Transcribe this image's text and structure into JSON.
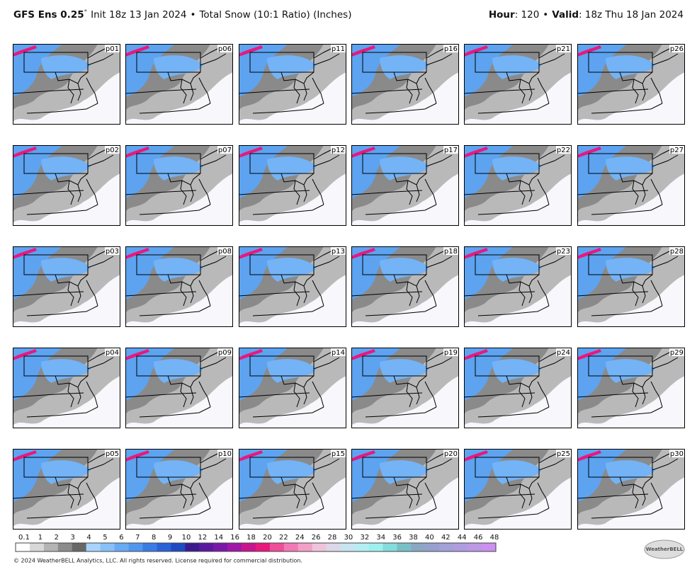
{
  "header": {
    "model": "GFS Ens 0.25",
    "degree": "°",
    "init": "Init 18z 13 Jan 2024",
    "separator": "•",
    "product": "Total Snow (10:1 Ratio) (Inches)",
    "hour_label": "Hour",
    "hour": ": 120",
    "valid_label": "Valid",
    "valid": ": 18z Thu 18 Jan 2024"
  },
  "panels": [
    "p01",
    "p06",
    "p11",
    "p16",
    "p21",
    "p26",
    "p02",
    "p07",
    "p12",
    "p17",
    "p22",
    "p27",
    "p03",
    "p08",
    "p13",
    "p18",
    "p23",
    "p28",
    "p04",
    "p09",
    "p14",
    "p19",
    "p24",
    "p29",
    "p05",
    "p10",
    "p15",
    "p20",
    "p25",
    "p30"
  ],
  "colorbar": {
    "ticks": [
      0.1,
      1,
      2,
      3,
      4,
      5,
      6,
      7,
      8,
      9,
      10,
      12,
      14,
      16,
      18,
      20,
      22,
      24,
      26,
      28,
      30,
      32,
      34,
      36,
      38,
      40,
      42,
      44,
      46,
      48
    ],
    "colors": [
      "#ffffff",
      "#d8d8d8",
      "#b4b4b4",
      "#8c8c8c",
      "#686868",
      "#a8d4fb",
      "#88c0f8",
      "#68aaf4",
      "#4f96ef",
      "#3a7ce6",
      "#2a63d8",
      "#1e4bc4",
      "#3b1a8f",
      "#5a1aa0",
      "#7a18a8",
      "#a016a8",
      "#c8148f",
      "#e8187f",
      "#f04c9a",
      "#f27ab4",
      "#f3a0c8",
      "#eec4dc",
      "#dcd8e8",
      "#c8e4f0",
      "#b4eef4",
      "#9ef0ee",
      "#84dcdc",
      "#78c0c8",
      "#8aa8c4",
      "#98a0d0",
      "#a4a0d8",
      "#b09ce0",
      "#bc98e6",
      "#cc90f0"
    ]
  },
  "footer": {
    "copyright": "© 2024 WeatherBELL Analytics, LLC. All rights reserved. License required for commercial distribution.",
    "logo": "WeatherBELL"
  }
}
